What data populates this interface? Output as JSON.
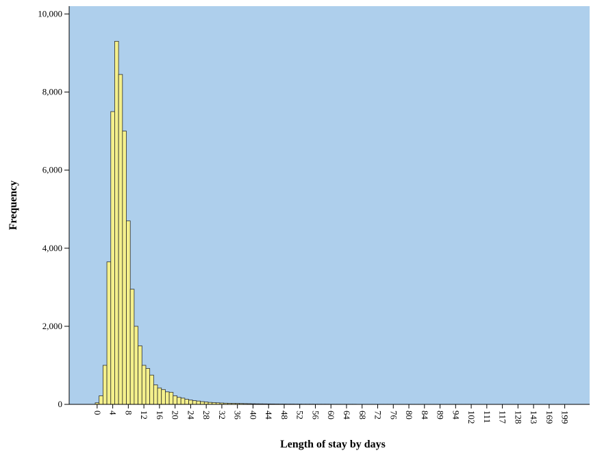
{
  "chart_data": {
    "type": "bar",
    "title": "",
    "xlabel": "Length of stay by days",
    "ylabel": "Frequency",
    "ylim": [
      0,
      10200
    ],
    "y_ticks": [
      0,
      2000,
      4000,
      6000,
      8000,
      10000
    ],
    "y_tick_labels": [
      "0",
      "2,000",
      "4,000",
      "6,000",
      "8,000",
      "10,000"
    ],
    "categories": [
      "0",
      "1",
      "2",
      "3",
      "4",
      "5",
      "6",
      "7",
      "8",
      "9",
      "10",
      "11",
      "12",
      "13",
      "14",
      "15",
      "16",
      "17",
      "18",
      "19",
      "20",
      "21",
      "22",
      "23",
      "24",
      "25",
      "26",
      "27",
      "28",
      "29",
      "30",
      "31",
      "32",
      "33",
      "34",
      "35",
      "36",
      "37",
      "38",
      "39",
      "40",
      "41",
      "42",
      "43",
      "44",
      "45",
      "46",
      "47",
      "48",
      "49",
      "50",
      "51",
      "52",
      "53",
      "54",
      "55",
      "56",
      "57",
      "58",
      "59",
      "60",
      "61",
      "62",
      "63",
      "64",
      "65",
      "66",
      "67",
      "68",
      "69",
      "70",
      "71",
      "72",
      "73",
      "74",
      "75",
      "76",
      "77",
      "78",
      "79",
      "80",
      "81",
      "82",
      "83",
      "84",
      "85",
      "86",
      "87",
      "88",
      "89",
      "90",
      "91",
      "92",
      "93",
      "94",
      "96",
      "98",
      "100",
      "102",
      "105",
      "108",
      "111",
      "113",
      "115",
      "117",
      "120",
      "122",
      "125",
      "128",
      "131",
      "134",
      "137",
      "140",
      "143",
      "150",
      "160",
      "169",
      "180",
      "185",
      "190",
      "199"
    ],
    "values": [
      40,
      220,
      1000,
      3650,
      7500,
      9300,
      8450,
      7000,
      4700,
      2950,
      2000,
      1500,
      1000,
      920,
      750,
      500,
      420,
      380,
      320,
      310,
      220,
      180,
      160,
      130,
      110,
      95,
      85,
      70,
      60,
      50,
      45,
      40,
      35,
      30,
      28,
      26,
      24,
      22,
      20,
      18,
      16,
      14,
      13,
      12,
      11,
      10,
      9,
      8,
      8,
      7,
      7,
      6,
      6,
      5,
      5,
      5,
      4,
      4,
      4,
      4,
      3,
      3,
      3,
      3,
      3,
      3,
      3,
      2,
      2,
      2,
      2,
      2,
      2,
      2,
      2,
      2,
      2,
      2,
      2,
      2,
      2,
      2,
      2,
      2,
      2,
      2,
      2,
      2,
      2,
      2,
      2,
      2,
      2,
      2,
      2,
      2,
      2,
      2,
      2,
      2,
      2,
      1,
      1,
      1,
      1,
      1,
      1,
      1,
      1,
      1,
      1,
      1,
      1,
      1,
      1,
      1,
      1,
      1,
      1,
      1,
      1
    ],
    "x_tick_labels": [
      "0",
      "4",
      "8",
      "12",
      "16",
      "20",
      "24",
      "28",
      "32",
      "36",
      "40",
      "44",
      "48",
      "52",
      "56",
      "60",
      "64",
      "68",
      "72",
      "76",
      "80",
      "84",
      "89",
      "94",
      "102",
      "111",
      "117",
      "128",
      "143",
      "169",
      "199"
    ],
    "grid": false,
    "colors": {
      "plot_background": "#aecfec",
      "bar_fill": "#f4f08c",
      "bar_stroke": "#2b2b2b"
    }
  }
}
